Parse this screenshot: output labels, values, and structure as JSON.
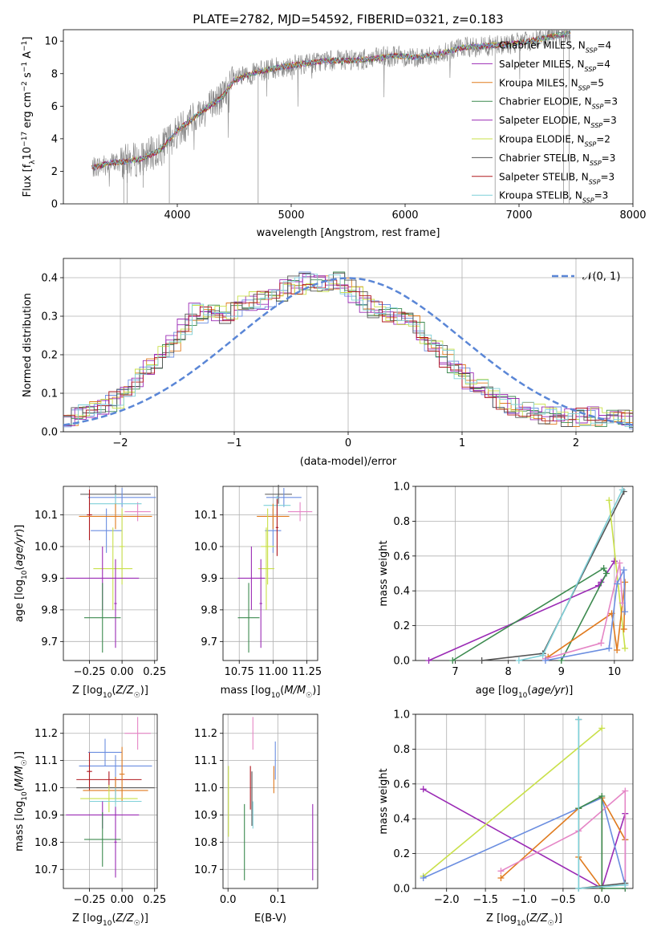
{
  "figure": {
    "title": "PLATE=2782, MJD=54592, FIBERID=0321, z=0.183"
  },
  "colors": {
    "chabrier_miles": "#6b8ee0",
    "salpeter_miles": "#9b2bb5",
    "kroupa_miles": "#e07b1f",
    "chabrier_elodie": "#3c8a4f",
    "salpeter_elodie": "#9b2bb5",
    "kroupa_elodie": "#c9e04a",
    "chabrier_stelib": "#555555",
    "salpeter_stelib": "#b0181e",
    "kroupa_stelib": "#7fd0d8",
    "pink": "#e586c6",
    "data": "#888888",
    "normal": "#5a86d6"
  },
  "chart_data": [
    {
      "id": "spectrum",
      "type": "line",
      "xlabel": "wavelength [Angstrom, rest frame]",
      "ylabel_parts": [
        "Flux [f",
        "λ",
        "10",
        "−17",
        " erg cm",
        "−2",
        " s",
        "−1",
        " A",
        "−1",
        "]"
      ],
      "xlim": [
        3000,
        8000
      ],
      "ylim": [
        0,
        10.7
      ],
      "xticks": [
        4000,
        5000,
        6000,
        7000,
        8000
      ],
      "yticks": [
        0,
        2,
        4,
        6,
        8,
        10
      ],
      "grid": false,
      "legend_placement": "top-right",
      "continuum": {
        "x": [
          3250,
          3400,
          3550,
          3700,
          3850,
          4000,
          4200,
          4400,
          4500,
          4700,
          4900,
          5100,
          5300,
          5500,
          5700,
          5900,
          6100,
          6300,
          6500,
          6700,
          6900,
          7100,
          7300,
          7450
        ],
        "y": [
          2.2,
          2.5,
          2.6,
          2.8,
          3.3,
          4.5,
          5.6,
          6.6,
          7.6,
          8.1,
          8.4,
          8.6,
          8.8,
          8.8,
          8.9,
          9.1,
          9.0,
          9.2,
          9.6,
          9.7,
          9.8,
          10.0,
          10.3,
          10.5
        ]
      },
      "series": [
        {
          "name": "Chabrier MILES, N",
          "nssp": "=4",
          "color_key": "chabrier_miles"
        },
        {
          "name": "Salpeter MILES, N",
          "nssp": "=4",
          "color_key": "salpeter_miles"
        },
        {
          "name": "Kroupa MILES, N",
          "nssp": "=5",
          "color_key": "kroupa_miles"
        },
        {
          "name": "Chabrier ELODIE, N",
          "nssp": "=3",
          "color_key": "chabrier_elodie"
        },
        {
          "name": "Salpeter ELODIE, N",
          "nssp": "=3",
          "color_key": "salpeter_elodie"
        },
        {
          "name": "Kroupa ELODIE, N",
          "nssp": "=2",
          "color_key": "kroupa_elodie"
        },
        {
          "name": "Chabrier STELIB, N",
          "nssp": "=3",
          "color_key": "chabrier_stelib"
        },
        {
          "name": "Salpeter STELIB, N",
          "nssp": "=3",
          "color_key": "salpeter_stelib"
        },
        {
          "name": "Kroupa STELIB, N",
          "nssp": "=3",
          "color_key": "kroupa_stelib"
        }
      ],
      "nssp_sub": "SSP"
    },
    {
      "id": "residuals",
      "type": "histogram",
      "xlabel": "(data-model)/error",
      "ylabel": "Normed distribution",
      "xlim": [
        -2.5,
        2.5
      ],
      "ylim": [
        0,
        0.45
      ],
      "xticks": [
        -2,
        -1,
        0,
        1,
        2
      ],
      "yticks": [
        0.0,
        0.1,
        0.2,
        0.3,
        0.4
      ],
      "grid": true,
      "bin_width": 0.1,
      "legend": "𝒩(0, 1)",
      "legend_placement": "top-right",
      "profile": [
        0.03,
        0.032,
        0.04,
        0.045,
        0.05,
        0.055,
        0.055,
        0.062,
        0.07,
        0.085,
        0.095,
        0.11,
        0.125,
        0.14,
        0.155,
        0.17,
        0.185,
        0.2,
        0.215,
        0.23,
        0.25,
        0.275,
        0.3,
        0.31,
        0.3,
        0.31,
        0.32,
        0.31,
        0.3,
        0.31,
        0.32,
        0.33,
        0.33,
        0.34,
        0.345,
        0.34,
        0.34,
        0.35,
        0.355,
        0.37,
        0.38,
        0.38,
        0.39,
        0.39,
        0.38,
        0.38,
        0.385,
        0.395,
        0.39,
        0.38,
        0.37,
        0.36,
        0.35,
        0.33,
        0.32,
        0.32,
        0.31,
        0.31,
        0.31,
        0.3,
        0.29,
        0.28,
        0.265,
        0.25,
        0.235,
        0.22,
        0.205,
        0.19,
        0.175,
        0.16,
        0.15,
        0.135,
        0.125,
        0.112,
        0.1,
        0.09,
        0.08,
        0.072,
        0.068,
        0.062,
        0.058,
        0.055,
        0.05,
        0.05,
        0.045,
        0.042,
        0.04,
        0.04,
        0.038,
        0.035,
        0.035,
        0.04,
        0.04,
        0.04,
        0.038,
        0.036,
        0.035,
        0.034,
        0.032,
        0.032
      ],
      "profile_start": -2.5,
      "profile_step": 0.05,
      "normal": {
        "mean": 0,
        "sigma": 1,
        "color_key": "normal"
      }
    },
    {
      "id": "age_vs_Z",
      "type": "errorbar",
      "xlabel": "Z [log10(Z/Z☉)]",
      "ylabel": "age  [log10(age/yr)]",
      "xlim": [
        -0.45,
        0.27
      ],
      "ylim": [
        9.64,
        10.19
      ],
      "xticks": [
        -0.25,
        0.0,
        0.25
      ],
      "xtick_labels": [
        "−0.25",
        "0.00",
        "0.25"
      ],
      "yticks": [
        9.7,
        9.8,
        9.9,
        10.0,
        10.1
      ],
      "grid": true,
      "points": [
        {
          "x": -0.05,
          "xerr": 0.27,
          "y": 10.165,
          "yerr": 0.03,
          "color_key": "chabrier_stelib"
        },
        {
          "x": 0.0,
          "xerr": 0.26,
          "y": 10.155,
          "yerr": 0.03,
          "color_key": "chabrier_miles"
        },
        {
          "x": 0.12,
          "xerr": 0.1,
          "y": 10.11,
          "yerr": 0.03,
          "color_key": "pink"
        },
        {
          "x": -0.05,
          "xerr": 0.2,
          "y": 10.135,
          "yerr": 0.03,
          "color_key": "kroupa_stelib"
        },
        {
          "x": -0.12,
          "xerr": 0.12,
          "y": 10.05,
          "yerr": 0.07,
          "color_key": "chabrier_miles"
        },
        {
          "x": -0.25,
          "xerr": 0.02,
          "y": 10.1,
          "yerr": 0.08,
          "color_key": "salpeter_stelib"
        },
        {
          "x": -0.05,
          "xerr": 0.28,
          "y": 10.095,
          "yerr": 0.04,
          "color_key": "kroupa_miles"
        },
        {
          "x": 0.0,
          "xerr": 0.02,
          "y": 10.0,
          "yerr": 0.12,
          "color_key": "kroupa_elodie"
        },
        {
          "x": -0.07,
          "xerr": 0.15,
          "y": 9.93,
          "yerr": 0.13,
          "color_key": "kroupa_elodie"
        },
        {
          "x": -0.15,
          "xerr": 0.28,
          "y": 9.9,
          "yerr": 0.1,
          "color_key": "salpeter_elodie"
        },
        {
          "x": -0.05,
          "xerr": 0.01,
          "y": 9.82,
          "yerr": 0.14,
          "color_key": "salpeter_elodie"
        },
        {
          "x": -0.15,
          "xerr": 0.14,
          "y": 9.775,
          "yerr": 0.11,
          "color_key": "chabrier_elodie"
        }
      ]
    },
    {
      "id": "age_vs_mass",
      "type": "errorbar",
      "xlabel": "mass [log10(M/M☉)]",
      "ylabel": "",
      "xlim": [
        10.63,
        11.33
      ],
      "ylim": [
        9.64,
        10.19
      ],
      "xticks": [
        10.75,
        11.0,
        11.25
      ],
      "xtick_labels": [
        "10.75",
        "11.00",
        "11.25"
      ],
      "yticks": [
        9.7,
        9.8,
        9.9,
        10.0,
        10.1
      ],
      "grid": true,
      "points": [
        {
          "x": 11.04,
          "xerr": 0.1,
          "y": 10.165,
          "yerr": 0.03,
          "color_key": "chabrier_stelib"
        },
        {
          "x": 11.08,
          "xerr": 0.13,
          "y": 10.155,
          "yerr": 0.03,
          "color_key": "chabrier_miles"
        },
        {
          "x": 11.2,
          "xerr": 0.09,
          "y": 10.11,
          "yerr": 0.03,
          "color_key": "pink"
        },
        {
          "x": 11.03,
          "xerr": 0.1,
          "y": 10.13,
          "yerr": 0.03,
          "color_key": "kroupa_stelib"
        },
        {
          "x": 11.0,
          "xerr": 0.06,
          "y": 10.05,
          "yerr": 0.07,
          "color_key": "chabrier_miles"
        },
        {
          "x": 11.03,
          "xerr": 0.01,
          "y": 10.06,
          "yerr": 0.09,
          "color_key": "salpeter_stelib"
        },
        {
          "x": 11.0,
          "xerr": 0.12,
          "y": 10.095,
          "yerr": 0.04,
          "color_key": "kroupa_miles"
        },
        {
          "x": 10.96,
          "xerr": 0.05,
          "y": 10.0,
          "yerr": 0.12,
          "color_key": "kroupa_elodie"
        },
        {
          "x": 10.95,
          "xerr": 0.06,
          "y": 9.93,
          "yerr": 0.13,
          "color_key": "kroupa_elodie"
        },
        {
          "x": 10.84,
          "xerr": 0.1,
          "y": 9.9,
          "yerr": 0.1,
          "color_key": "salpeter_elodie"
        },
        {
          "x": 10.91,
          "xerr": 0.01,
          "y": 9.82,
          "yerr": 0.14,
          "color_key": "salpeter_elodie"
        },
        {
          "x": 10.82,
          "xerr": 0.08,
          "y": 9.775,
          "yerr": 0.11,
          "color_key": "chabrier_elodie"
        }
      ]
    },
    {
      "id": "massweight_vs_age",
      "type": "line",
      "xlabel": "age  [log10(age/yr)]",
      "ylabel": "mass weight",
      "xlim": [
        6.25,
        10.35
      ],
      "ylim": [
        0,
        1.0
      ],
      "xticks": [
        7,
        8,
        9,
        10
      ],
      "yticks": [
        0.0,
        0.2,
        0.4,
        0.6,
        0.8,
        1.0
      ],
      "grid": true,
      "series": [
        {
          "color_key": "salpeter_elodie",
          "x": [
            6.5,
            9.7,
            9.75,
            10.0
          ],
          "y": [
            0.0,
            0.43,
            0.45,
            0.57
          ]
        },
        {
          "color_key": "chabrier_elodie",
          "x": [
            6.95,
            9.8,
            9.85,
            9.0
          ],
          "y": [
            0.0,
            0.53,
            0.5,
            0.0
          ]
        },
        {
          "color_key": "chabrier_stelib",
          "x": [
            7.5,
            8.65,
            10.18
          ],
          "y": [
            0.0,
            0.04,
            0.97
          ]
        },
        {
          "color_key": "kroupa_stelib",
          "x": [
            8.2,
            8.65,
            10.15
          ],
          "y": [
            0.0,
            0.03,
            0.98
          ]
        },
        {
          "color_key": "kroupa_elodie",
          "x": [
            9.9,
            10.2
          ],
          "y": [
            0.92,
            0.07
          ]
        },
        {
          "color_key": "kroupa_miles",
          "x": [
            8.75,
            9.95,
            10.05,
            10.2,
            10.18
          ],
          "y": [
            0.02,
            0.27,
            0.06,
            0.45,
            0.18
          ]
        },
        {
          "color_key": "pink",
          "x": [
            8.7,
            9.75,
            10.1,
            10.15
          ],
          "y": [
            0.01,
            0.1,
            0.56,
            0.33
          ]
        },
        {
          "color_key": "chabrier_miles",
          "x": [
            8.7,
            9.9,
            10.05,
            10.18,
            10.2
          ],
          "y": [
            0.0,
            0.07,
            0.44,
            0.52,
            0.28
          ]
        }
      ]
    },
    {
      "id": "mass_vs_Z",
      "type": "errorbar",
      "xlabel": "Z [log10(Z/Z☉)]",
      "ylabel": "mass [log10(M/M☉)]",
      "xlim": [
        -0.45,
        0.27
      ],
      "ylim": [
        10.63,
        11.27
      ],
      "xticks": [
        -0.25,
        0.0,
        0.25
      ],
      "xtick_labels": [
        "−0.25",
        "0.00",
        "0.25"
      ],
      "yticks": [
        10.7,
        10.8,
        10.9,
        11.0,
        11.1,
        11.2
      ],
      "grid": true,
      "points": [
        {
          "x": 0.12,
          "xerr": 0.1,
          "y": 11.2,
          "yerr": 0.06,
          "color_key": "pink"
        },
        {
          "x": -0.13,
          "xerr": 0.13,
          "y": 11.13,
          "yerr": 0.05,
          "color_key": "chabrier_miles"
        },
        {
          "x": -0.05,
          "xerr": 0.28,
          "y": 11.08,
          "yerr": 0.04,
          "color_key": "chabrier_miles"
        },
        {
          "x": -0.1,
          "xerr": 0.25,
          "y": 11.03,
          "yerr": 0.03,
          "color_key": "salpeter_stelib"
        },
        {
          "x": -0.25,
          "xerr": 0.02,
          "y": 11.06,
          "yerr": 0.07,
          "color_key": "salpeter_stelib"
        },
        {
          "x": -0.05,
          "xerr": 0.3,
          "y": 11.0,
          "yerr": 0.04,
          "color_key": "chabrier_stelib"
        },
        {
          "x": 0.0,
          "xerr": 0.02,
          "y": 11.05,
          "yerr": 0.1,
          "color_key": "kroupa_miles"
        },
        {
          "x": -0.05,
          "xerr": 0.25,
          "y": 10.99,
          "yerr": 0.05,
          "color_key": "kroupa_miles"
        },
        {
          "x": -0.1,
          "xerr": 0.22,
          "y": 10.96,
          "yerr": 0.05,
          "color_key": "kroupa_elodie"
        },
        {
          "x": -0.05,
          "xerr": 0.2,
          "y": 10.95,
          "yerr": 0.05,
          "color_key": "kroupa_stelib"
        },
        {
          "x": -0.15,
          "xerr": 0.28,
          "y": 10.9,
          "yerr": 0.05,
          "color_key": "salpeter_elodie"
        },
        {
          "x": -0.05,
          "xerr": 0.01,
          "y": 10.8,
          "yerr": 0.13,
          "color_key": "salpeter_elodie"
        },
        {
          "x": -0.15,
          "xerr": 0.14,
          "y": 10.81,
          "yerr": 0.1,
          "color_key": "chabrier_elodie"
        }
      ]
    },
    {
      "id": "mass_vs_ebv",
      "type": "errorbar",
      "xlabel": "E(B-V)",
      "ylabel": "",
      "xlim": [
        -0.01,
        0.18
      ],
      "ylim": [
        10.63,
        11.27
      ],
      "xticks": [
        0.0,
        0.1
      ],
      "xtick_labels": [
        "0.0",
        "0.1"
      ],
      "yticks": [
        10.7,
        10.8,
        10.9,
        11.0,
        11.1,
        11.2
      ],
      "grid": true,
      "points": [
        {
          "x": 0.05,
          "xerr": 0,
          "y": 11.2,
          "yerr": 0.06,
          "color_key": "pink"
        },
        {
          "x": 0.095,
          "xerr": 0,
          "y": 11.1,
          "yerr": 0.07,
          "color_key": "chabrier_miles"
        },
        {
          "x": 0.092,
          "xerr": 0,
          "y": 11.03,
          "yerr": 0.05,
          "color_key": "kroupa_miles"
        },
        {
          "x": 0.045,
          "xerr": 0,
          "y": 11.0,
          "yerr": 0.08,
          "color_key": "salpeter_stelib"
        },
        {
          "x": 0.048,
          "xerr": 0,
          "y": 10.96,
          "yerr": 0.1,
          "color_key": "chabrier_stelib"
        },
        {
          "x": 0.001,
          "xerr": 0,
          "y": 10.95,
          "yerr": 0.13,
          "color_key": "kroupa_elodie"
        },
        {
          "x": 0.05,
          "xerr": 0,
          "y": 10.9,
          "yerr": 0.05,
          "color_key": "kroupa_stelib"
        },
        {
          "x": 0.033,
          "xerr": 0,
          "y": 10.8,
          "yerr": 0.14,
          "color_key": "chabrier_elodie"
        },
        {
          "x": 0.17,
          "xerr": 0,
          "y": 10.8,
          "yerr": 0.14,
          "color_key": "salpeter_elodie"
        }
      ]
    },
    {
      "id": "massweight_vs_Z",
      "type": "line",
      "xlabel": "Z [log10(Z/Z☉)]",
      "ylabel": "mass weight",
      "xlim": [
        -2.4,
        0.4
      ],
      "ylim": [
        0,
        1.0
      ],
      "xticks": [
        -2.0,
        -1.5,
        -1.0,
        -0.5,
        0.0
      ],
      "xtick_labels": [
        "−2.0",
        "−1.5",
        "−1.0",
        "−0.5",
        "0.0"
      ],
      "yticks": [
        0.0,
        0.2,
        0.4,
        0.6,
        0.8,
        1.0
      ],
      "grid": true,
      "series": [
        {
          "color_key": "salpeter_elodie",
          "x": [
            -2.3,
            0.0,
            0.3,
            0.3
          ],
          "y": [
            0.57,
            0.0,
            0.43,
            0.0
          ]
        },
        {
          "color_key": "kroupa_elodie",
          "x": [
            -2.3,
            0.0
          ],
          "y": [
            0.07,
            0.92
          ]
        },
        {
          "color_key": "chabrier_miles",
          "x": [
            -2.3,
            0.0,
            0.3,
            0.3
          ],
          "y": [
            0.06,
            0.52,
            0.02,
            0.28
          ]
        },
        {
          "color_key": "kroupa_miles",
          "x": [
            -1.3,
            -0.3,
            -0.3,
            0.0,
            0.0,
            0.3
          ],
          "y": [
            0.06,
            0.46,
            0.18,
            0.0,
            0.52,
            0.28
          ]
        },
        {
          "color_key": "pink",
          "x": [
            -1.3,
            -0.3,
            0.3,
            0.3
          ],
          "y": [
            0.1,
            0.33,
            0.56,
            0.0
          ]
        },
        {
          "color_key": "chabrier_elodie",
          "x": [
            -0.3,
            0.0,
            0.0,
            0.3
          ],
          "y": [
            0.46,
            0.53,
            0.0,
            0.0
          ]
        },
        {
          "color_key": "chabrier_stelib",
          "x": [
            -0.3,
            -0.3,
            0.3
          ],
          "y": [
            0.97,
            0.0,
            0.03
          ]
        },
        {
          "color_key": "kroupa_stelib",
          "x": [
            -0.3,
            -0.3,
            0.3
          ],
          "y": [
            0.97,
            0.0,
            0.02
          ]
        }
      ]
    }
  ]
}
